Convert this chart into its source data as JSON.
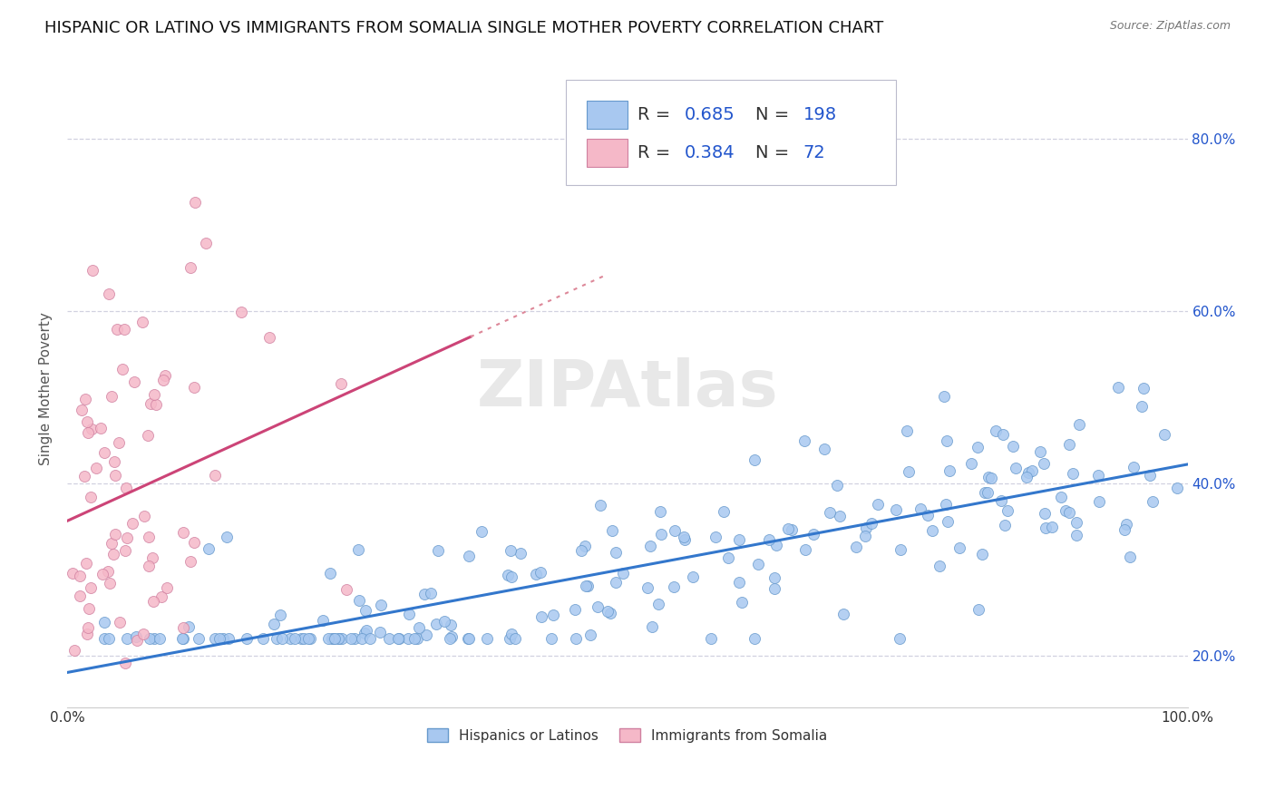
{
  "title": "HISPANIC OR LATINO VS IMMIGRANTS FROM SOMALIA SINGLE MOTHER POVERTY CORRELATION CHART",
  "source": "Source: ZipAtlas.com",
  "ylabel": "Single Mother Poverty",
  "series1_label": "Hispanics or Latinos",
  "series1_color": "#a8c8f0",
  "series1_edge_color": "#6699cc",
  "series1_R": 0.685,
  "series1_N": 198,
  "series2_label": "Immigrants from Somalia",
  "series2_color": "#f5b8c8",
  "series2_edge_color": "#d080a0",
  "series2_R": 0.384,
  "series2_N": 72,
  "xlim": [
    0.0,
    1.0
  ],
  "ylim": [
    0.14,
    0.88
  ],
  "y_ticks": [
    0.2,
    0.4,
    0.6,
    0.8
  ],
  "y_tick_labels": [
    "20.0%",
    "40.0%",
    "60.0%",
    "80.0%"
  ],
  "watermark": "ZIPAtlas",
  "legend_label_color": "#333333",
  "legend_value_color": "#2255cc",
  "trend1_color": "#3377cc",
  "trend2_color": "#cc4477",
  "trend2_dotted_color": "#dd8899",
  "background_color": "#ffffff",
  "grid_color": "#ccccdd",
  "title_color": "#111111",
  "title_fontsize": 13,
  "axis_label_fontsize": 11,
  "tick_fontsize": 11,
  "source_fontsize": 9
}
